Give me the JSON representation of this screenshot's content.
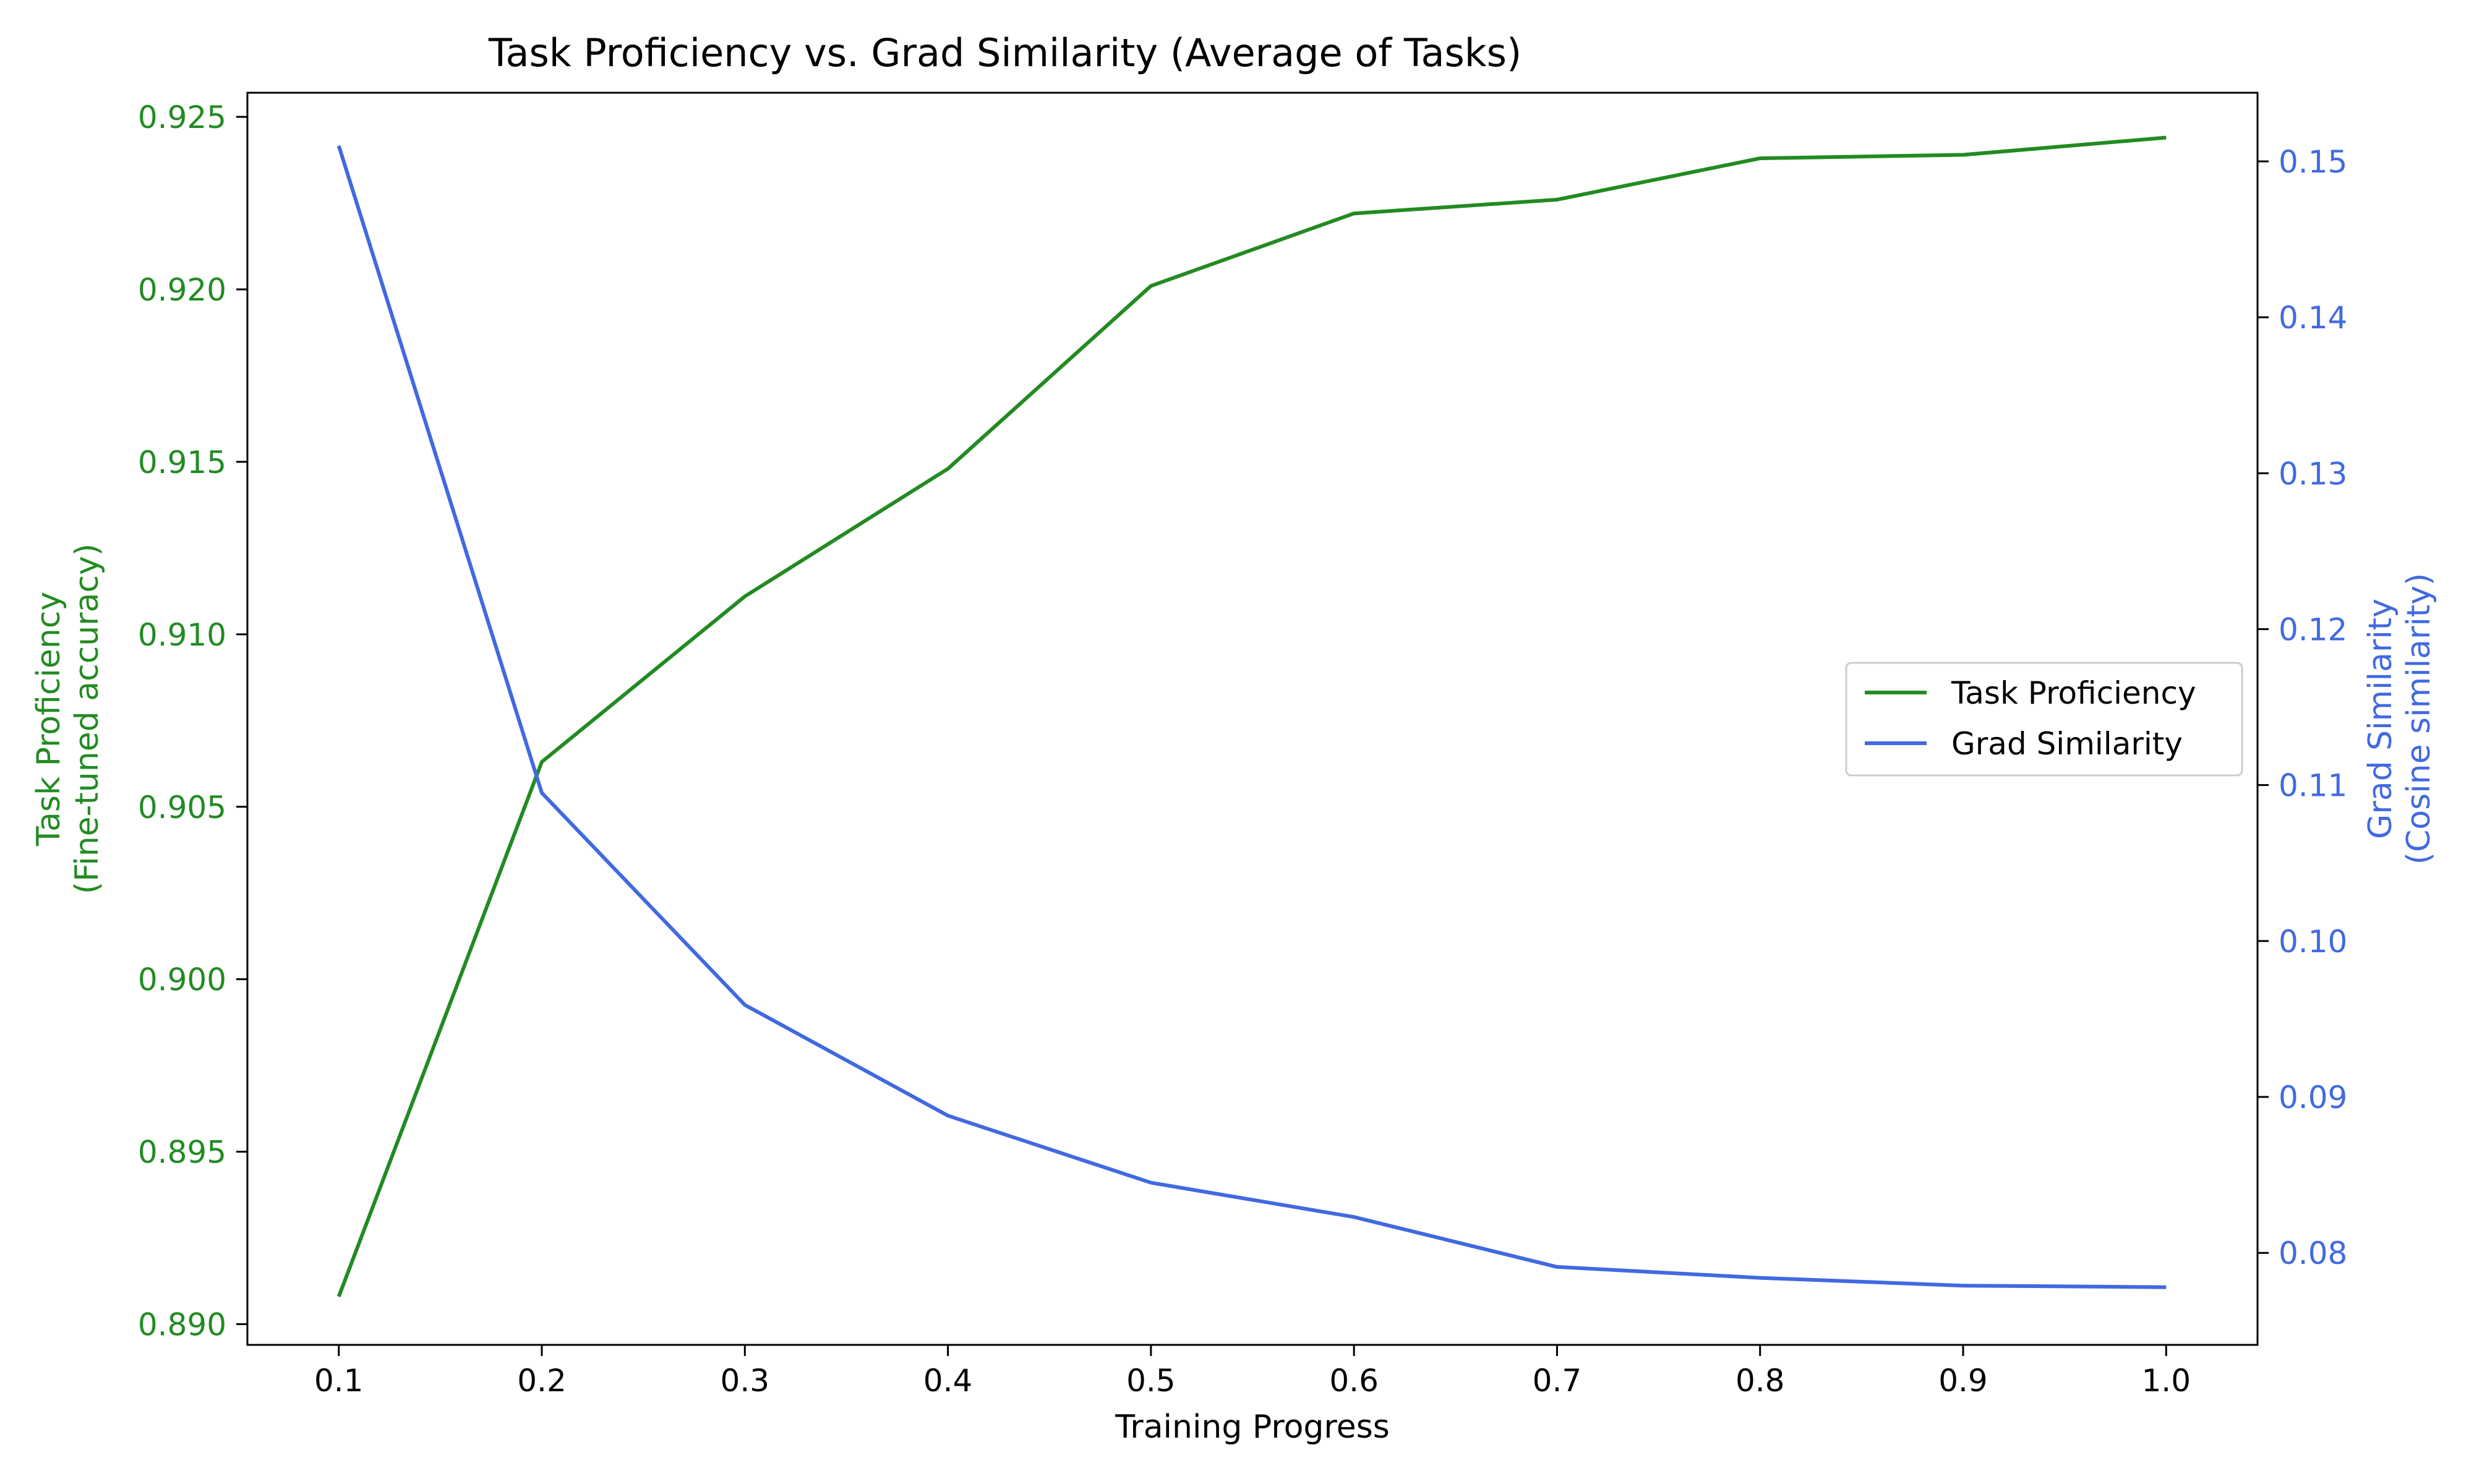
{
  "chart_data": {
    "type": "line",
    "title": "Task Proficiency vs. Grad Similarity (Average of Tasks)",
    "xlabel": "Training Progress",
    "ylabel_left": [
      "Task Proficiency",
      "(Fine-tuned accuracy)"
    ],
    "ylabel_right": [
      "Grad Similarity",
      "(Cosine similarity)"
    ],
    "x": [
      0.1,
      0.2,
      0.3,
      0.4,
      0.5,
      0.6,
      0.7,
      0.8,
      0.9,
      1.0
    ],
    "xlim": [
      0.055,
      1.045
    ],
    "xticks": [
      "0.1",
      "0.2",
      "0.3",
      "0.4",
      "0.5",
      "0.6",
      "0.7",
      "0.8",
      "0.9",
      "1.0"
    ],
    "ylim_left": [
      0.8894,
      0.9257
    ],
    "yticks_left": [
      "0.890",
      "0.895",
      "0.900",
      "0.905",
      "0.910",
      "0.915",
      "0.920",
      "0.925"
    ],
    "ylim_right": [
      0.0741,
      0.1544
    ],
    "yticks_right": [
      "0.08",
      "0.09",
      "0.10",
      "0.11",
      "0.12",
      "0.13",
      "0.14",
      "0.15"
    ],
    "series": [
      {
        "name": "Task Proficiency",
        "axis": "left",
        "color": "#228b22",
        "values": [
          0.8908,
          0.9063,
          0.9111,
          0.9148,
          0.9201,
          0.9222,
          0.9226,
          0.9238,
          0.9239,
          0.9244
        ]
      },
      {
        "name": "Grad Similarity",
        "axis": "right",
        "color": "#4169e1",
        "values": [
          0.151,
          0.1095,
          0.0959,
          0.0888,
          0.0845,
          0.0823,
          0.0791,
          0.0784,
          0.0779,
          0.0778
        ]
      }
    ],
    "legend_position": "center-right",
    "grid": false
  }
}
